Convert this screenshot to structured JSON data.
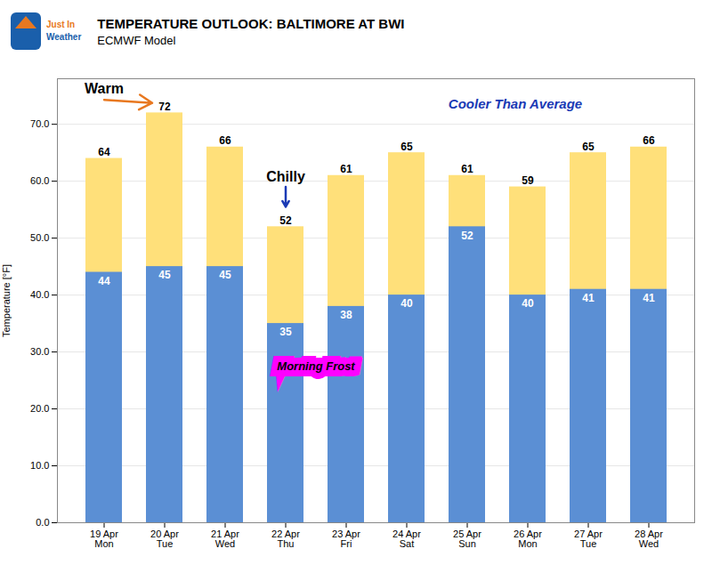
{
  "chart_data": {
    "type": "bar",
    "title": "TEMPERATURE OUTLOOK: BALTIMORE AT BWI",
    "subtitle": "ECMWF Model",
    "categories": [
      "19 Apr\nMon",
      "20 Apr\nTue",
      "21 Apr\nWed",
      "22 Apr\nThu",
      "23 Apr\nFri",
      "24 Apr\nSat",
      "25 Apr\nSun",
      "26 Apr\nMon",
      "27 Apr\nTue",
      "28 Apr\nWed"
    ],
    "series": [
      {
        "color": "#FFE07A",
        "values": [
          64,
          72,
          66,
          52,
          61,
          65,
          61,
          59,
          65,
          66
        ]
      },
      {
        "color": "#5B8FD4",
        "values": [
          44,
          45,
          45,
          35,
          38,
          40,
          52,
          40,
          41,
          41
        ]
      }
    ],
    "ylabel": "Temperature [°F]",
    "ylim": [
      0,
      78
    ],
    "yticks": [
      {
        "value": 0,
        "label": "0.0"
      },
      {
        "value": 10,
        "label": "10.0"
      },
      {
        "value": 20,
        "label": "20.0"
      },
      {
        "value": 30,
        "label": "30.0"
      },
      {
        "value": 40,
        "label": "40.0"
      },
      {
        "value": 50,
        "label": "50.0"
      },
      {
        "value": 60,
        "label": "60.0"
      },
      {
        "value": 70,
        "label": "70.0"
      }
    ],
    "grid": true,
    "data_labels": true,
    "annotations": [
      "Warm",
      "Chilly",
      "Cooler Than Average",
      "Morning Frost",
      "Just In",
      "Weather"
    ]
  }
}
